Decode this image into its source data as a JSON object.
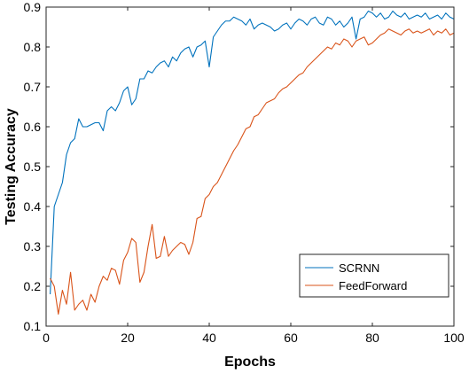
{
  "chart_data": {
    "type": "line",
    "xlabel": "Epochs",
    "ylabel": "Testing Accuracy",
    "xlim": [
      0,
      100
    ],
    "ylim": [
      0.1,
      0.9
    ],
    "xticks": [
      "0",
      "20",
      "40",
      "60",
      "80",
      "100"
    ],
    "yticks": [
      "0.1",
      "0.2",
      "0.3",
      "0.4",
      "0.5",
      "0.6",
      "0.7",
      "0.8",
      "0.9"
    ],
    "xtick_values": [
      0,
      20,
      40,
      60,
      80,
      100
    ],
    "ytick_values": [
      0.1,
      0.2,
      0.3,
      0.4,
      0.5,
      0.6,
      0.7,
      0.8,
      0.9
    ],
    "grid": false,
    "legend_position": "bottom-right",
    "x": [
      1,
      2,
      3,
      4,
      5,
      6,
      7,
      8,
      9,
      10,
      11,
      12,
      13,
      14,
      15,
      16,
      17,
      18,
      19,
      20,
      21,
      22,
      23,
      24,
      25,
      26,
      27,
      28,
      29,
      30,
      31,
      32,
      33,
      34,
      35,
      36,
      37,
      38,
      39,
      40,
      41,
      42,
      43,
      44,
      45,
      46,
      47,
      48,
      49,
      50,
      51,
      52,
      53,
      54,
      55,
      56,
      57,
      58,
      59,
      60,
      61,
      62,
      63,
      64,
      65,
      66,
      67,
      68,
      69,
      70,
      71,
      72,
      73,
      74,
      75,
      76,
      77,
      78,
      79,
      80,
      81,
      82,
      83,
      84,
      85,
      86,
      87,
      88,
      89,
      90,
      91,
      92,
      93,
      94,
      95,
      96,
      97,
      98,
      99,
      100
    ],
    "series": [
      {
        "name": "SCRNN",
        "color": "#0072BD",
        "values": [
          0.18,
          0.4,
          0.43,
          0.46,
          0.53,
          0.56,
          0.57,
          0.62,
          0.6,
          0.6,
          0.605,
          0.61,
          0.61,
          0.59,
          0.64,
          0.65,
          0.64,
          0.66,
          0.69,
          0.7,
          0.655,
          0.67,
          0.72,
          0.72,
          0.74,
          0.735,
          0.75,
          0.76,
          0.765,
          0.75,
          0.775,
          0.765,
          0.785,
          0.795,
          0.8,
          0.775,
          0.8,
          0.805,
          0.815,
          0.75,
          0.825,
          0.84,
          0.855,
          0.865,
          0.865,
          0.875,
          0.87,
          0.865,
          0.855,
          0.87,
          0.845,
          0.855,
          0.86,
          0.855,
          0.85,
          0.84,
          0.845,
          0.855,
          0.86,
          0.845,
          0.86,
          0.87,
          0.865,
          0.855,
          0.87,
          0.875,
          0.86,
          0.855,
          0.875,
          0.87,
          0.855,
          0.865,
          0.85,
          0.86,
          0.875,
          0.82,
          0.87,
          0.875,
          0.89,
          0.885,
          0.875,
          0.885,
          0.87,
          0.875,
          0.89,
          0.88,
          0.875,
          0.885,
          0.87,
          0.875,
          0.88,
          0.875,
          0.885,
          0.87,
          0.875,
          0.88,
          0.87,
          0.885,
          0.875,
          0.87
        ]
      },
      {
        "name": "FeedForward",
        "color": "#D95319",
        "values": [
          0.22,
          0.2,
          0.13,
          0.19,
          0.155,
          0.235,
          0.14,
          0.155,
          0.165,
          0.14,
          0.18,
          0.16,
          0.2,
          0.225,
          0.215,
          0.245,
          0.24,
          0.205,
          0.265,
          0.285,
          0.32,
          0.31,
          0.21,
          0.235,
          0.3,
          0.355,
          0.27,
          0.275,
          0.325,
          0.275,
          0.29,
          0.3,
          0.31,
          0.305,
          0.28,
          0.31,
          0.37,
          0.375,
          0.42,
          0.43,
          0.45,
          0.46,
          0.48,
          0.5,
          0.52,
          0.54,
          0.555,
          0.575,
          0.595,
          0.6,
          0.625,
          0.63,
          0.645,
          0.66,
          0.665,
          0.67,
          0.685,
          0.695,
          0.7,
          0.71,
          0.72,
          0.73,
          0.735,
          0.75,
          0.76,
          0.77,
          0.78,
          0.79,
          0.8,
          0.795,
          0.81,
          0.805,
          0.82,
          0.815,
          0.8,
          0.815,
          0.82,
          0.825,
          0.805,
          0.81,
          0.82,
          0.83,
          0.835,
          0.845,
          0.84,
          0.835,
          0.83,
          0.84,
          0.845,
          0.835,
          0.84,
          0.835,
          0.84,
          0.845,
          0.83,
          0.84,
          0.835,
          0.845,
          0.83,
          0.835
        ]
      }
    ]
  }
}
